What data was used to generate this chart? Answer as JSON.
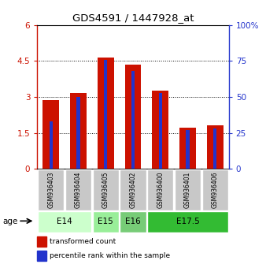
{
  "title": "GDS4591 / 1447928_at",
  "samples": [
    "GSM936403",
    "GSM936404",
    "GSM936405",
    "GSM936402",
    "GSM936400",
    "GSM936401",
    "GSM936406"
  ],
  "red_values": [
    2.87,
    3.15,
    4.65,
    4.35,
    3.25,
    1.72,
    1.82
  ],
  "blue_pct": [
    33,
    50,
    76,
    68,
    53,
    27,
    28
  ],
  "ylim_left": [
    0,
    6
  ],
  "ylim_right": [
    0,
    100
  ],
  "yticks_left": [
    0,
    1.5,
    3.0,
    4.5,
    6
  ],
  "ytick_labels_left": [
    "0",
    "1.5",
    "3",
    "4.5",
    "6"
  ],
  "yticks_right": [
    0,
    25,
    50,
    75,
    100
  ],
  "ytick_labels_right": [
    "0",
    "25",
    "50",
    "75",
    "100%"
  ],
  "bar_color_red": "#cc1100",
  "bar_color_blue": "#2233cc",
  "bg_color": "#ffffff",
  "sample_bg": "#c8c8c8",
  "age_groups_info": [
    {
      "label": "E14",
      "start": 0,
      "end": 1,
      "color": "#ccffcc"
    },
    {
      "label": "E15",
      "start": 2,
      "end": 2,
      "color": "#99ee99"
    },
    {
      "label": "E16",
      "start": 3,
      "end": 3,
      "color": "#77cc77"
    },
    {
      "label": "E17.5",
      "start": 4,
      "end": 6,
      "color": "#33bb33"
    }
  ],
  "legend_red": "transformed count",
  "legend_blue": "percentile rank within the sample"
}
